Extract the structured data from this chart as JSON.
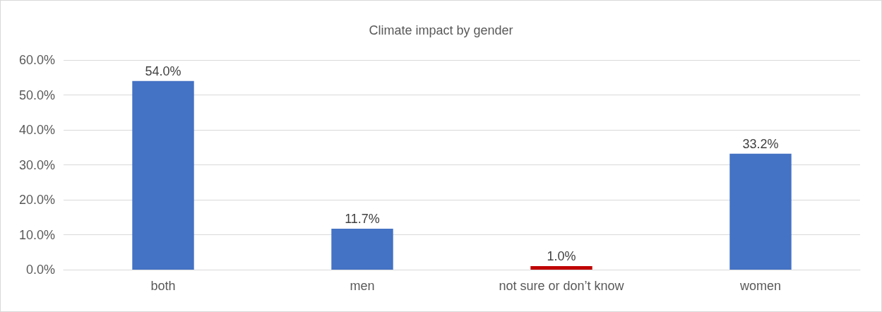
{
  "chart_data": {
    "type": "bar",
    "title": "Climate impact by gender",
    "categories": [
      "both",
      "men",
      "not sure or don’t know",
      "women"
    ],
    "values": [
      54.0,
      11.7,
      1.0,
      33.2
    ],
    "colors": [
      "#4472c4",
      "#4472c4",
      "#c00000",
      "#4472c4"
    ],
    "value_labels": [
      "54.0%",
      "11.7%",
      "1.0%",
      "33.2%"
    ],
    "ylim": [
      0,
      60
    ],
    "yticks": [
      {
        "value": 0,
        "label": "0.0%"
      },
      {
        "value": 10,
        "label": "10.0%"
      },
      {
        "value": 20,
        "label": "20.0%"
      },
      {
        "value": 30,
        "label": "30.0%"
      },
      {
        "value": 40,
        "label": "40.0%"
      },
      {
        "value": 50,
        "label": "50.0%"
      },
      {
        "value": 60,
        "label": "60.0%"
      }
    ],
    "grid": "y"
  }
}
